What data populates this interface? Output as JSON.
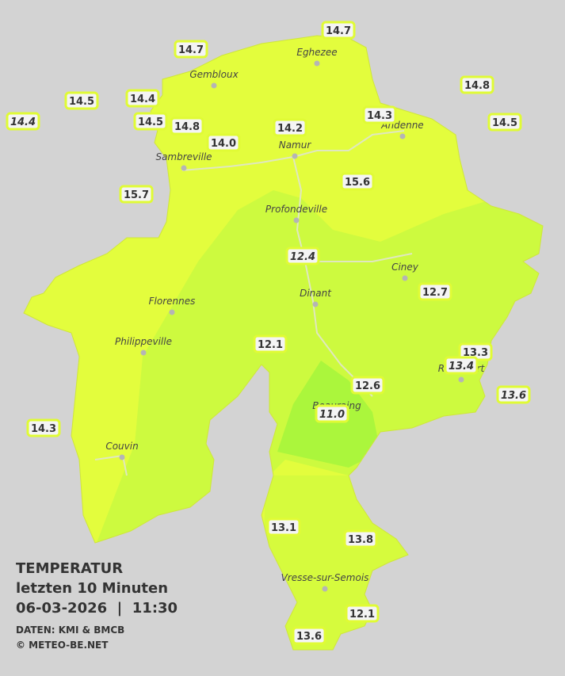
{
  "title": "TEMPERATUR",
  "subtitle": "letzten 10 Minuten",
  "datetime": "06-03-2026  |  11:30",
  "source": "DATEN: KMI & BMCB",
  "copyright": "© METEO-BE.NET",
  "cities": [
    "Eghezee",
    "Gembloux",
    "Andenne",
    "Namur",
    "Sambreville",
    "Profondeville",
    "Ciney",
    "Dinant",
    "Florennes",
    "Philippeville",
    "Rochefort",
    "Beauraing",
    "Couvin",
    "Vresse-sur-Semois"
  ],
  "stations": [
    {
      "value": "14.7",
      "italic": false
    },
    {
      "value": "14.7",
      "italic": false
    },
    {
      "value": "14.5",
      "italic": false
    },
    {
      "value": "14.4",
      "italic": false
    },
    {
      "value": "14.4",
      "italic": true
    },
    {
      "value": "14.5",
      "italic": false
    },
    {
      "value": "14.8",
      "italic": false
    },
    {
      "value": "14.0",
      "italic": false
    },
    {
      "value": "14.2",
      "italic": false
    },
    {
      "value": "14.3",
      "italic": false
    },
    {
      "value": "14.8",
      "italic": false
    },
    {
      "value": "14.5",
      "italic": false
    },
    {
      "value": "15.7",
      "italic": false
    },
    {
      "value": "15.6",
      "italic": false
    },
    {
      "value": "12.4",
      "italic": true
    },
    {
      "value": "12.7",
      "italic": false
    },
    {
      "value": "12.1",
      "italic": false
    },
    {
      "value": "13.3",
      "italic": false
    },
    {
      "value": "13.4",
      "italic": true
    },
    {
      "value": "12.6",
      "italic": false
    },
    {
      "value": "13.6",
      "italic": true
    },
    {
      "value": "11.0",
      "italic": true
    },
    {
      "value": "14.3",
      "italic": false
    },
    {
      "value": "13.1",
      "italic": false
    },
    {
      "value": "13.8",
      "italic": false
    },
    {
      "value": "12.1",
      "italic": false
    },
    {
      "value": "13.6",
      "italic": false
    }
  ]
}
